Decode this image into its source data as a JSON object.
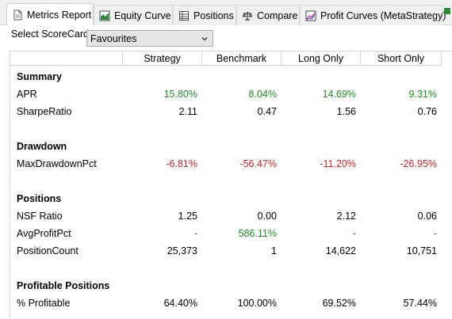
{
  "tabs": [
    {
      "label": "Metrics Report",
      "icon": "document-icon",
      "active": true
    },
    {
      "label": "Equity Curve",
      "icon": "area-chart-icon",
      "active": false
    },
    {
      "label": "Positions",
      "icon": "table-icon",
      "active": false
    },
    {
      "label": "Compare",
      "icon": "scales-icon",
      "active": false
    },
    {
      "label": "Profit Curves (MetaStrategy)",
      "icon": "line-chart-icon",
      "active": false
    }
  ],
  "scorecard": {
    "label": "Select ScoreCard:",
    "value": "Favourites"
  },
  "columns": [
    "Strategy",
    "Benchmark",
    "Long Only",
    "Short Only"
  ],
  "sections": [
    {
      "title": "Summary",
      "rows": [
        {
          "label": "APR",
          "values": [
            "15.80%",
            "8.04%",
            "14.69%",
            "9.31%"
          ],
          "colors": [
            "pos",
            "pos",
            "pos",
            "pos"
          ]
        },
        {
          "label": "SharpeRatio",
          "values": [
            "2.11",
            "0.47",
            "1.56",
            "0.76"
          ],
          "colors": [
            "",
            "",
            "",
            ""
          ]
        }
      ]
    },
    {
      "title": "Drawdown",
      "rows": [
        {
          "label": "MaxDrawdownPct",
          "values": [
            "-6.81%",
            "-56.47%",
            "-11.20%",
            "-26.95%"
          ],
          "colors": [
            "neg",
            "neg",
            "neg",
            "neg"
          ]
        }
      ]
    },
    {
      "title": "Positions",
      "rows": [
        {
          "label": "NSF Ratio",
          "values": [
            "1.25",
            "0.00",
            "2.12",
            "0.06"
          ],
          "colors": [
            "",
            "",
            "",
            ""
          ]
        },
        {
          "label": "AvgProfitPct",
          "values": [
            "-",
            "586.11%",
            "-",
            "-"
          ],
          "colors": [
            "neg",
            "pos",
            "neg",
            "neg"
          ]
        },
        {
          "label": "PositionCount",
          "values": [
            "25,373",
            "1",
            "14,622",
            "10,751"
          ],
          "colors": [
            "",
            "",
            "",
            ""
          ]
        }
      ]
    },
    {
      "title": "Profitable Positions",
      "rows": [
        {
          "label": "% Profitable",
          "values": [
            "64.40%",
            "100.00%",
            "69.52%",
            "57.44%"
          ],
          "colors": [
            "",
            "",
            "",
            ""
          ]
        }
      ]
    }
  ],
  "colors": {
    "positive": "#1f8f1f",
    "negative": "#d42020"
  }
}
